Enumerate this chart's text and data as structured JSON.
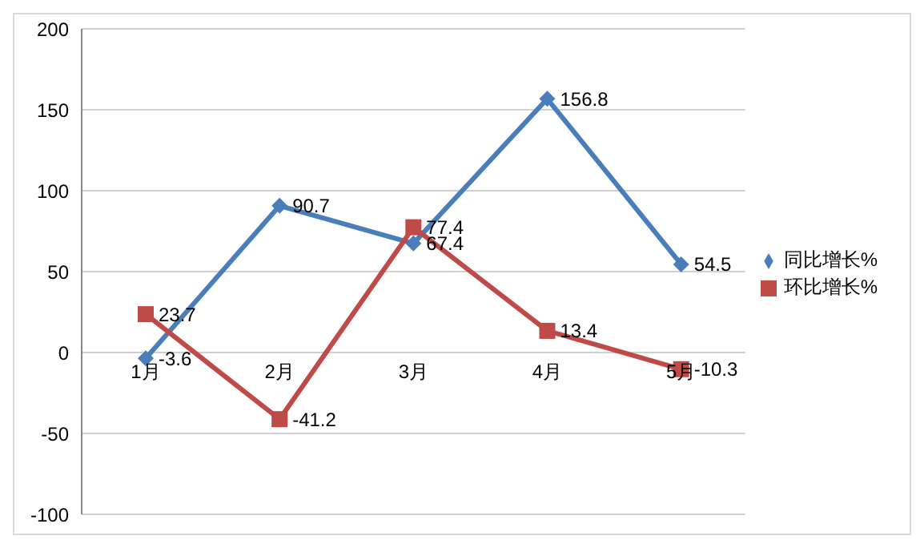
{
  "chart_data": {
    "type": "line",
    "categories": [
      "1月",
      "2月",
      "3月",
      "4月",
      "5月"
    ],
    "series": [
      {
        "name": "同比增长%",
        "color": "#4a7ebb",
        "marker": "diamond",
        "values": [
          -3.6,
          90.7,
          67.4,
          156.8,
          54.5
        ]
      },
      {
        "name": "环比增长%",
        "color": "#be4b48",
        "marker": "square",
        "values": [
          23.7,
          -41.2,
          77.4,
          13.4,
          -10.3
        ]
      }
    ],
    "ylim": [
      -100,
      200
    ],
    "yticks": [
      -100,
      -50,
      0,
      50,
      100,
      150,
      200
    ],
    "grid": "y",
    "legend": "right",
    "data_labels": true,
    "line_style": "solid"
  }
}
